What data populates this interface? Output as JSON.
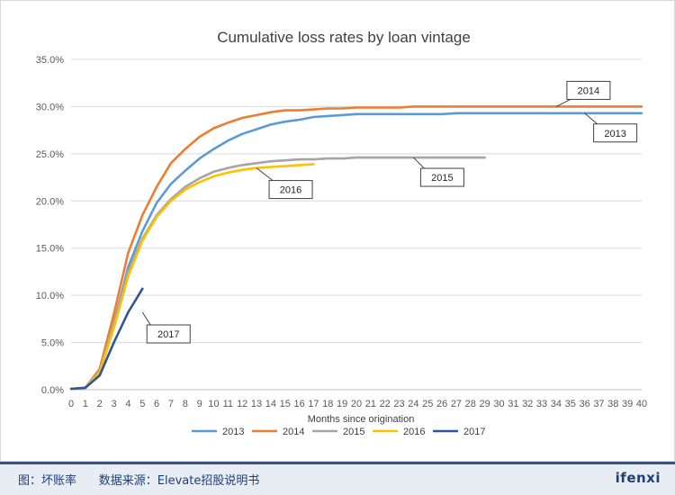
{
  "chart_data": {
    "type": "line",
    "title": "Cumulative loss rates by loan vintage",
    "xlabel": "Months since origination",
    "ylabel": "",
    "xlim": [
      0,
      40
    ],
    "ylim": [
      0,
      35
    ],
    "y_ticks": [
      "0.0%",
      "5.0%",
      "10.0%",
      "15.0%",
      "20.0%",
      "25.0%",
      "30.0%",
      "35.0%"
    ],
    "x_ticks": [
      "0",
      "1",
      "2",
      "3",
      "4",
      "5",
      "6",
      "7",
      "8",
      "9",
      "10",
      "11",
      "12",
      "13",
      "14",
      "15",
      "16",
      "17",
      "18",
      "19",
      "20",
      "21",
      "22",
      "23",
      "24",
      "25",
      "26",
      "27",
      "28",
      "29",
      "30",
      "31",
      "32",
      "33",
      "34",
      "35",
      "36",
      "37",
      "38",
      "39",
      "40"
    ],
    "grid": "horizontal",
    "legend_position": "bottom",
    "series": [
      {
        "name": "2013",
        "color": "#5b9bd5",
        "x": [
          0,
          1,
          2,
          3,
          4,
          5,
          6,
          7,
          8,
          9,
          10,
          11,
          12,
          13,
          14,
          15,
          16,
          17,
          18,
          19,
          20,
          21,
          22,
          23,
          24,
          25,
          26,
          27,
          28,
          29,
          30,
          31,
          32,
          33,
          34,
          35,
          36,
          37,
          38,
          39,
          40
        ],
        "values": [
          0.1,
          0.2,
          2.0,
          7.0,
          13.0,
          16.8,
          19.8,
          21.8,
          23.2,
          24.5,
          25.5,
          26.4,
          27.1,
          27.6,
          28.1,
          28.4,
          28.6,
          28.9,
          29.0,
          29.1,
          29.2,
          29.2,
          29.2,
          29.2,
          29.2,
          29.2,
          29.2,
          29.3,
          29.3,
          29.3,
          29.3,
          29.3,
          29.3,
          29.3,
          29.3,
          29.3,
          29.3,
          29.3,
          29.3,
          29.3,
          29.3
        ]
      },
      {
        "name": "2014",
        "color": "#ed7d31",
        "x": [
          0,
          1,
          2,
          3,
          4,
          5,
          6,
          7,
          8,
          9,
          10,
          11,
          12,
          13,
          14,
          15,
          16,
          17,
          18,
          19,
          20,
          21,
          22,
          23,
          24,
          25,
          26,
          27,
          28,
          29,
          30,
          31,
          32,
          33,
          34,
          35,
          36,
          37,
          38,
          39,
          40
        ],
        "values": [
          0.1,
          0.2,
          2.2,
          8.0,
          14.5,
          18.5,
          21.5,
          24.0,
          25.5,
          26.8,
          27.7,
          28.3,
          28.8,
          29.1,
          29.4,
          29.6,
          29.6,
          29.7,
          29.8,
          29.8,
          29.9,
          29.9,
          29.9,
          29.9,
          30.0,
          30.0,
          30.0,
          30.0,
          30.0,
          30.0,
          30.0,
          30.0,
          30.0,
          30.0,
          30.0,
          30.0,
          30.0,
          30.0,
          30.0,
          30.0,
          30.0
        ]
      },
      {
        "name": "2015",
        "color": "#a5a5a5",
        "x": [
          0,
          1,
          2,
          3,
          4,
          5,
          6,
          7,
          8,
          9,
          10,
          11,
          12,
          13,
          14,
          15,
          16,
          17,
          18,
          19,
          20,
          21,
          22,
          23,
          24,
          25,
          26,
          27,
          28,
          29
        ],
        "values": [
          0.1,
          0.2,
          2.0,
          7.0,
          12.5,
          16.0,
          18.5,
          20.2,
          21.5,
          22.4,
          23.1,
          23.5,
          23.8,
          24.0,
          24.2,
          24.3,
          24.4,
          24.4,
          24.5,
          24.5,
          24.6,
          24.6,
          24.6,
          24.6,
          24.6,
          24.6,
          24.6,
          24.6,
          24.6,
          24.6
        ]
      },
      {
        "name": "2016",
        "color": "#ffc000",
        "x": [
          0,
          1,
          2,
          3,
          4,
          5,
          6,
          7,
          8,
          9,
          10,
          11,
          12,
          13,
          14,
          15,
          16,
          17
        ],
        "values": [
          0.1,
          0.2,
          1.8,
          6.5,
          12.0,
          15.8,
          18.3,
          20.0,
          21.2,
          22.0,
          22.6,
          23.0,
          23.3,
          23.5,
          23.6,
          23.7,
          23.8,
          23.9
        ]
      },
      {
        "name": "2017",
        "color": "#2f5597",
        "x": [
          0,
          1,
          2,
          3,
          4,
          5
        ],
        "values": [
          0.1,
          0.2,
          1.5,
          5.0,
          8.2,
          10.7
        ]
      }
    ],
    "annotations": [
      {
        "text": "2014",
        "series": "2014",
        "x": 34,
        "y": 30.0
      },
      {
        "text": "2013",
        "series": "2013",
        "x": 36,
        "y": 29.3
      },
      {
        "text": "2015",
        "series": "2015",
        "x": 24,
        "y": 24.6
      },
      {
        "text": "2016",
        "series": "2016",
        "x": 13,
        "y": 23.5
      },
      {
        "text": "2017",
        "series": "2017",
        "x": 5,
        "y": 8.2
      }
    ]
  },
  "footer": {
    "caption": "图：坏账率      数据来源：Elevate招股说明书",
    "logo": "ifenxi"
  }
}
